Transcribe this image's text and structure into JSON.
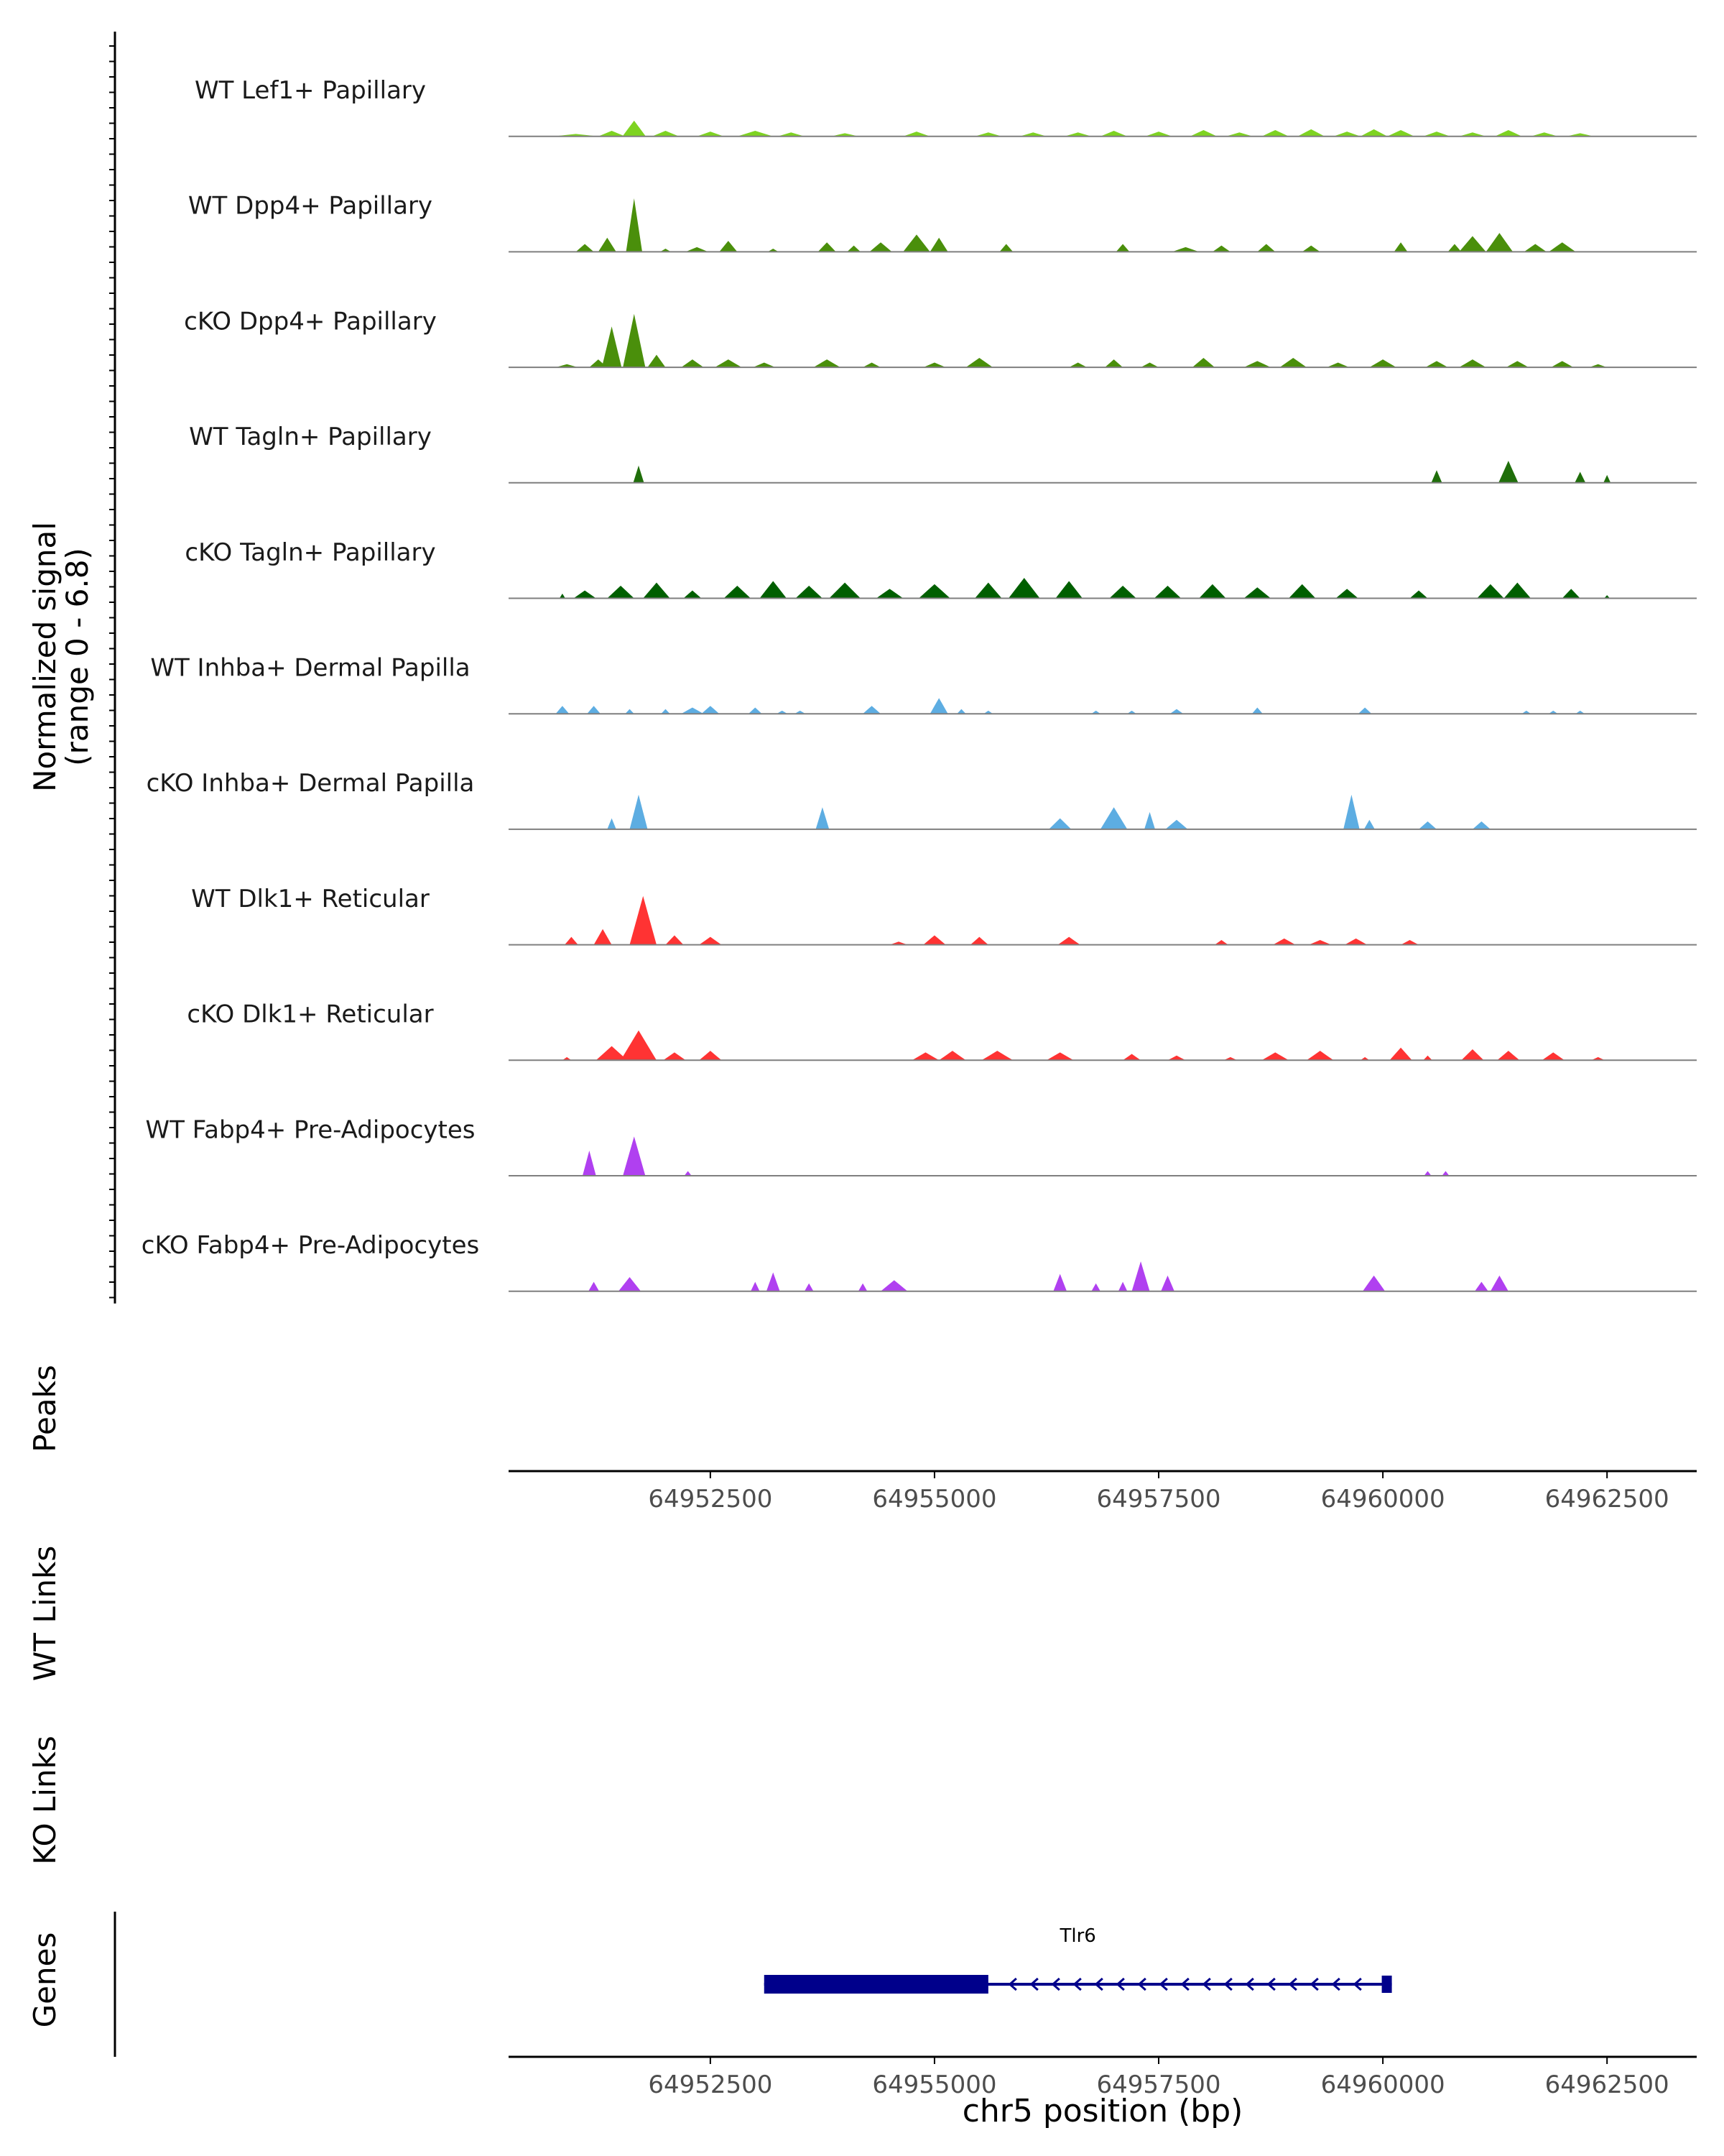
{
  "chart_data": {
    "type": "area",
    "title": "",
    "ylabel": "Normalized signal",
    "ylabel_range": "(range 0 - 6.8)",
    "y_range": [
      0,
      6.8
    ],
    "xlabel": "chr5 position (bp)",
    "x_range": [
      64950250,
      64963500
    ],
    "x_ticks": [
      64952500,
      64955000,
      64957500,
      64960000,
      64962500
    ],
    "x_tick_labels": [
      "64952500",
      "64955000",
      "64957500",
      "64960000",
      "64962500"
    ],
    "side_labels": {
      "peaks": "Peaks",
      "wt_links": "WT Links",
      "ko_links": "KO Links",
      "genes": "Genes"
    },
    "tracks": [
      {
        "name": "WT Lef1+ Papillary",
        "color": "#7ed321",
        "peaks": [
          [
            64951000,
            0.15,
            500
          ],
          [
            64951400,
            0.35,
            300
          ],
          [
            64951650,
            1.0,
            260
          ],
          [
            64952000,
            0.35,
            300
          ],
          [
            64952500,
            0.3,
            300
          ],
          [
            64953000,
            0.35,
            400
          ],
          [
            64953400,
            0.25,
            300
          ],
          [
            64954000,
            0.2,
            300
          ],
          [
            64954800,
            0.3,
            300
          ],
          [
            64955600,
            0.25,
            300
          ],
          [
            64956100,
            0.25,
            300
          ],
          [
            64956600,
            0.25,
            300
          ],
          [
            64957000,
            0.35,
            300
          ],
          [
            64957500,
            0.3,
            300
          ],
          [
            64958000,
            0.4,
            300
          ],
          [
            64958400,
            0.25,
            300
          ],
          [
            64958800,
            0.4,
            300
          ],
          [
            64959200,
            0.45,
            300
          ],
          [
            64959600,
            0.3,
            300
          ],
          [
            64959900,
            0.45,
            300
          ],
          [
            64960200,
            0.4,
            300
          ],
          [
            64960600,
            0.3,
            300
          ],
          [
            64961000,
            0.25,
            300
          ],
          [
            64961400,
            0.4,
            300
          ],
          [
            64961800,
            0.25,
            300
          ],
          [
            64962200,
            0.2,
            300
          ]
        ]
      },
      {
        "name": "WT Dpp4+ Papillary",
        "color": "#4a8f0b",
        "peaks": [
          [
            64951100,
            0.5,
            200
          ],
          [
            64951350,
            0.9,
            200
          ],
          [
            64951650,
            3.4,
            180
          ],
          [
            64952000,
            0.2,
            120
          ],
          [
            64952350,
            0.3,
            250
          ],
          [
            64952700,
            0.7,
            200
          ],
          [
            64953200,
            0.2,
            120
          ],
          [
            64953800,
            0.6,
            200
          ],
          [
            64954100,
            0.4,
            150
          ],
          [
            64954400,
            0.6,
            250
          ],
          [
            64954800,
            1.1,
            300
          ],
          [
            64955050,
            0.9,
            200
          ],
          [
            64955800,
            0.5,
            150
          ],
          [
            64957100,
            0.5,
            150
          ],
          [
            64957800,
            0.3,
            300
          ],
          [
            64958200,
            0.4,
            200
          ],
          [
            64958700,
            0.5,
            200
          ],
          [
            64959200,
            0.4,
            200
          ],
          [
            64960200,
            0.6,
            150
          ],
          [
            64960800,
            0.5,
            150
          ],
          [
            64961000,
            1.0,
            300
          ],
          [
            64961300,
            1.2,
            300
          ],
          [
            64961700,
            0.5,
            250
          ],
          [
            64962000,
            0.6,
            300
          ]
        ]
      },
      {
        "name": "cKO Dpp4+ Papillary",
        "color": "#4a8f0b",
        "peaks": [
          [
            64950900,
            0.2,
            250
          ],
          [
            64951250,
            0.5,
            200
          ],
          [
            64951400,
            2.6,
            220
          ],
          [
            64951650,
            3.4,
            250
          ],
          [
            64951900,
            0.8,
            200
          ],
          [
            64952300,
            0.5,
            250
          ],
          [
            64952700,
            0.5,
            300
          ],
          [
            64953100,
            0.3,
            250
          ],
          [
            64953800,
            0.5,
            300
          ],
          [
            64954300,
            0.3,
            200
          ],
          [
            64955000,
            0.3,
            250
          ],
          [
            64955500,
            0.6,
            300
          ],
          [
            64956600,
            0.3,
            200
          ],
          [
            64957000,
            0.5,
            200
          ],
          [
            64957400,
            0.3,
            200
          ],
          [
            64958000,
            0.6,
            250
          ],
          [
            64958600,
            0.4,
            300
          ],
          [
            64959000,
            0.6,
            300
          ],
          [
            64959500,
            0.3,
            250
          ],
          [
            64960000,
            0.5,
            300
          ],
          [
            64960600,
            0.4,
            250
          ],
          [
            64961000,
            0.5,
            300
          ],
          [
            64961500,
            0.4,
            250
          ],
          [
            64962000,
            0.4,
            250
          ],
          [
            64962400,
            0.2,
            200
          ]
        ]
      },
      {
        "name": "WT Tagln+ Papillary",
        "color": "#1f6e0a",
        "peaks": [
          [
            64951700,
            1.1,
            120
          ],
          [
            64960600,
            0.8,
            120
          ],
          [
            64961400,
            1.4,
            220
          ],
          [
            64962200,
            0.7,
            120
          ],
          [
            64962500,
            0.5,
            80
          ]
        ]
      },
      {
        "name": "cKO Tagln+ Papillary",
        "color": "#005f00",
        "peaks": [
          [
            64950850,
            0.3,
            60
          ],
          [
            64951100,
            0.5,
            250
          ],
          [
            64951500,
            0.8,
            300
          ],
          [
            64951900,
            1.0,
            300
          ],
          [
            64952300,
            0.5,
            200
          ],
          [
            64952800,
            0.8,
            300
          ],
          [
            64953200,
            1.1,
            300
          ],
          [
            64953600,
            0.8,
            300
          ],
          [
            64954000,
            1.0,
            350
          ],
          [
            64954500,
            0.6,
            300
          ],
          [
            64955000,
            0.9,
            350
          ],
          [
            64955600,
            1.0,
            300
          ],
          [
            64956000,
            1.3,
            350
          ],
          [
            64956500,
            1.1,
            300
          ],
          [
            64957100,
            0.8,
            300
          ],
          [
            64957600,
            0.8,
            300
          ],
          [
            64958100,
            0.9,
            300
          ],
          [
            64958600,
            0.7,
            300
          ],
          [
            64959100,
            0.9,
            300
          ],
          [
            64959600,
            0.6,
            250
          ],
          [
            64960400,
            0.5,
            200
          ],
          [
            64961200,
            0.9,
            300
          ],
          [
            64961500,
            1.0,
            300
          ],
          [
            64962100,
            0.6,
            200
          ],
          [
            64962500,
            0.2,
            60
          ]
        ]
      },
      {
        "name": "WT Inhba+ Dermal Papilla",
        "color": "#5dade2",
        "peaks": [
          [
            64950850,
            0.5,
            150
          ],
          [
            64951200,
            0.5,
            150
          ],
          [
            64951600,
            0.3,
            100
          ],
          [
            64952000,
            0.3,
            100
          ],
          [
            64952300,
            0.4,
            250
          ],
          [
            64952500,
            0.5,
            200
          ],
          [
            64953000,
            0.4,
            150
          ],
          [
            64953300,
            0.2,
            120
          ],
          [
            64953500,
            0.2,
            120
          ],
          [
            64954300,
            0.5,
            200
          ],
          [
            64955050,
            1.0,
            200
          ],
          [
            64955300,
            0.3,
            100
          ],
          [
            64955600,
            0.2,
            100
          ],
          [
            64956800,
            0.2,
            100
          ],
          [
            64957200,
            0.2,
            100
          ],
          [
            64957700,
            0.3,
            150
          ],
          [
            64958600,
            0.4,
            120
          ],
          [
            64959800,
            0.4,
            150
          ],
          [
            64961600,
            0.2,
            100
          ],
          [
            64961900,
            0.2,
            100
          ],
          [
            64962200,
            0.2,
            100
          ]
        ]
      },
      {
        "name": "cKO Inhba+ Dermal Papilla",
        "color": "#5dade2",
        "peaks": [
          [
            64951400,
            0.7,
            100
          ],
          [
            64951700,
            2.2,
            200
          ],
          [
            64953750,
            1.4,
            150
          ],
          [
            64956400,
            0.7,
            250
          ],
          [
            64957000,
            1.4,
            300
          ],
          [
            64957400,
            1.1,
            120
          ],
          [
            64957700,
            0.6,
            250
          ],
          [
            64959650,
            2.2,
            180
          ],
          [
            64959850,
            0.6,
            120
          ],
          [
            64960500,
            0.5,
            200
          ],
          [
            64961100,
            0.5,
            200
          ]
        ]
      },
      {
        "name": "WT Dlk1+ Reticular",
        "color": "#ff3333",
        "peaks": [
          [
            64950950,
            0.5,
            150
          ],
          [
            64951300,
            1.0,
            200
          ],
          [
            64951750,
            3.1,
            300
          ],
          [
            64952100,
            0.6,
            200
          ],
          [
            64952500,
            0.5,
            250
          ],
          [
            64954600,
            0.2,
            200
          ],
          [
            64955000,
            0.6,
            250
          ],
          [
            64955500,
            0.5,
            200
          ],
          [
            64956500,
            0.5,
            250
          ],
          [
            64958200,
            0.3,
            150
          ],
          [
            64958900,
            0.4,
            250
          ],
          [
            64959300,
            0.3,
            250
          ],
          [
            64959700,
            0.4,
            250
          ],
          [
            64960300,
            0.3,
            200
          ]
        ]
      },
      {
        "name": "cKO Dlk1+ Reticular",
        "color": "#ff3333",
        "peaks": [
          [
            64950900,
            0.2,
            100
          ],
          [
            64951400,
            0.9,
            350
          ],
          [
            64951700,
            1.9,
            400
          ],
          [
            64952100,
            0.5,
            250
          ],
          [
            64952500,
            0.6,
            250
          ],
          [
            64954900,
            0.5,
            300
          ],
          [
            64955200,
            0.6,
            300
          ],
          [
            64955700,
            0.6,
            350
          ],
          [
            64956400,
            0.5,
            300
          ],
          [
            64957200,
            0.4,
            200
          ],
          [
            64957700,
            0.3,
            200
          ],
          [
            64958300,
            0.2,
            150
          ],
          [
            64958800,
            0.5,
            300
          ],
          [
            64959300,
            0.6,
            300
          ],
          [
            64959800,
            0.2,
            100
          ],
          [
            64960200,
            0.8,
            250
          ],
          [
            64960500,
            0.3,
            100
          ],
          [
            64961000,
            0.7,
            250
          ],
          [
            64961400,
            0.6,
            250
          ],
          [
            64961900,
            0.5,
            250
          ],
          [
            64962400,
            0.2,
            150
          ]
        ]
      },
      {
        "name": "WT Fabp4+ Pre-Adipocytes",
        "color": "#b040f0",
        "peaks": [
          [
            64951150,
            1.6,
            150
          ],
          [
            64951650,
            2.5,
            250
          ],
          [
            64952250,
            0.3,
            80
          ],
          [
            64960500,
            0.3,
            80
          ],
          [
            64960700,
            0.3,
            80
          ]
        ]
      },
      {
        "name": "cKO Fabp4+ Pre-Adipocytes",
        "color": "#b040f0",
        "peaks": [
          [
            64951200,
            0.6,
            120
          ],
          [
            64951600,
            0.9,
            250
          ],
          [
            64953000,
            0.6,
            100
          ],
          [
            64953200,
            1.2,
            150
          ],
          [
            64953600,
            0.5,
            100
          ],
          [
            64954200,
            0.5,
            100
          ],
          [
            64954550,
            0.7,
            300
          ],
          [
            64956400,
            1.1,
            150
          ],
          [
            64956800,
            0.5,
            100
          ],
          [
            64957100,
            0.6,
            100
          ],
          [
            64957300,
            1.9,
            200
          ],
          [
            64957600,
            1.0,
            150
          ],
          [
            64959900,
            1.0,
            250
          ],
          [
            64961100,
            0.6,
            150
          ],
          [
            64961300,
            1.0,
            200
          ]
        ]
      }
    ],
    "genes": [
      {
        "name": "Tlr6",
        "strand": "-",
        "start": 64953100,
        "end": 64960100,
        "cds_start": 64953100,
        "cds_end": 64955600
      }
    ]
  }
}
